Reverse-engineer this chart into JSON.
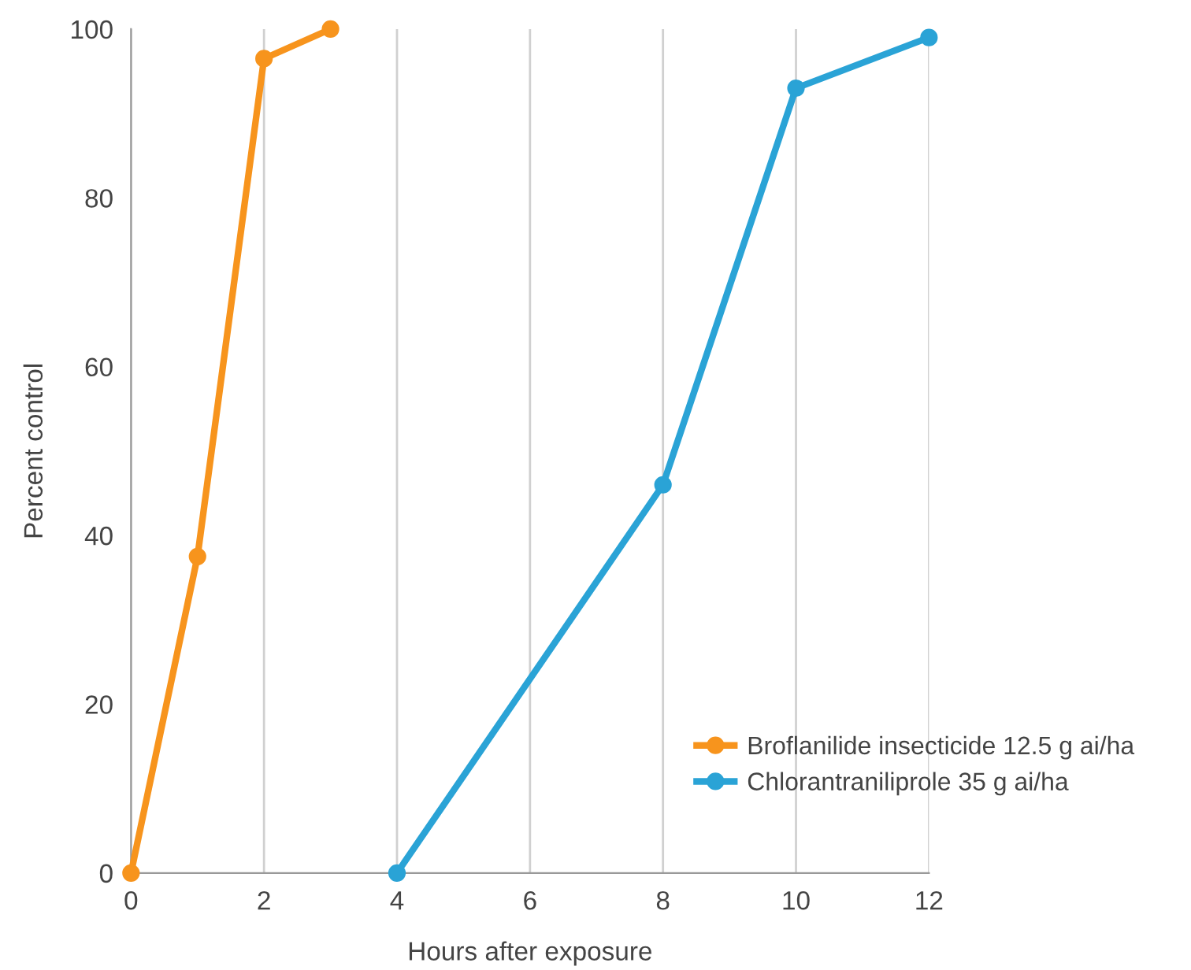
{
  "chart_data": {
    "type": "line",
    "xlabel": "Hours after exposure",
    "ylabel": "Percent control",
    "xlim": [
      0,
      12
    ],
    "ylim": [
      0,
      100
    ],
    "xticks": [
      0,
      2,
      4,
      6,
      8,
      10,
      12
    ],
    "yticks": [
      0,
      20,
      40,
      60,
      80,
      100
    ],
    "grid": "x",
    "legend": "bottom right",
    "marker": "circle",
    "line_style": "solid",
    "series": [
      {
        "name": "Broflanilide insecticide 12.5 g ai/ha",
        "color": "#f7941d",
        "x": [
          0,
          1,
          2,
          3
        ],
        "values": [
          0,
          37.5,
          96.5,
          100
        ]
      },
      {
        "name": "Chlorantraniliprole 35 g ai/ha",
        "color": "#2aa3d6",
        "x": [
          4,
          8,
          10,
          12
        ],
        "values": [
          0,
          46,
          93,
          99
        ]
      }
    ]
  }
}
